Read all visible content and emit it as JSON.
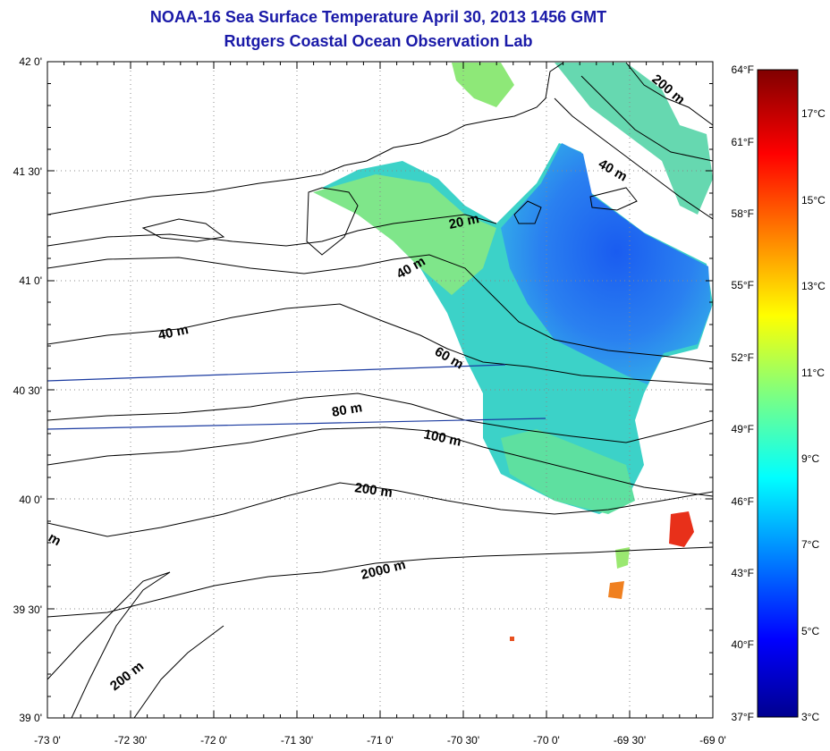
{
  "title": "NOAA-16 Sea Surface Temperature April 30, 2013 1456 GMT",
  "subtitle": "Rutgers Coastal Ocean Observation Lab",
  "lon_labels": [
    "-73 0'",
    "-72 30'",
    "-72 0'",
    "-71 30'",
    "-71 0'",
    "-70 30'",
    "-70 0'",
    "-69 30'",
    "-69 0'"
  ],
  "lat_labels": [
    "42 0'",
    "41 30'",
    "41 0'",
    "40 30'",
    "40 0'",
    "39 30'",
    "39 0'"
  ],
  "depth_labels": {
    "d20": "20 m",
    "d40a": "40 m",
    "d40b": "40 m",
    "d40c": "40 m",
    "d60": "60 m",
    "d80": "80 m",
    "d100": "100 m",
    "d200a": "200 m",
    "d200b": "200 m",
    "d200c": "200 m",
    "d2000": "2000 m",
    "dm": "m"
  },
  "colorbar": {
    "fahrenheit": [
      "64°F",
      "61°F",
      "58°F",
      "55°F",
      "52°F",
      "49°F",
      "46°F",
      "43°F",
      "40°F",
      "37°F"
    ],
    "celsius": [
      "17°C",
      "15°C",
      "13°C",
      "11°C",
      "9°C",
      "7°C",
      "5°C",
      "3°C"
    ]
  },
  "colors": {
    "title": "#1a1aa8",
    "track": "#1a3aa0"
  }
}
